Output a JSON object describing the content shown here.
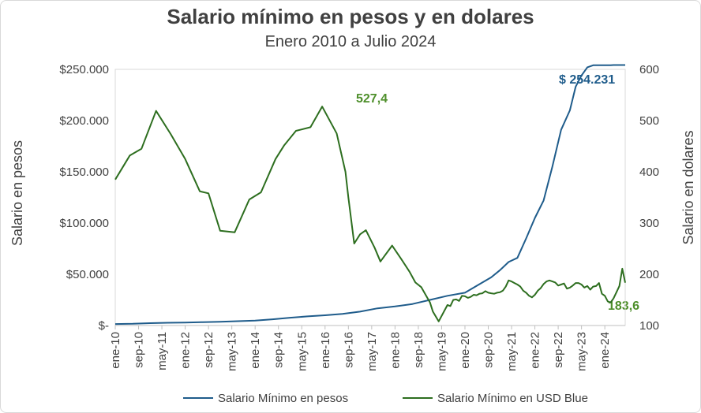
{
  "chart_data": {
    "type": "line",
    "title": "Salario mínimo en pesos y en dolares",
    "subtitle": "Enero 2010 a Julio 2024",
    "ylabel": "Salario en pesos",
    "y2label": "Salario en dolares",
    "ylim": [
      0,
      250000
    ],
    "y2lim": [
      100,
      600
    ],
    "yticks": [
      "$-",
      "$50.000",
      "$100.000",
      "$150.000",
      "$200.000",
      "$250.000"
    ],
    "y2ticks": [
      "100",
      "200",
      "300",
      "400",
      "500",
      "600"
    ],
    "xticks": [
      "ene-10",
      "sep-10",
      "may-11",
      "ene-12",
      "sep-12",
      "may-13",
      "ene-14",
      "sep-14",
      "may-15",
      "ene-16",
      "sep-16",
      "may-17",
      "ene-18",
      "sep-18",
      "may-19",
      "ene-20",
      "sep-20",
      "may-21",
      "ene-22",
      "sep-22",
      "may-23",
      "ene-24"
    ],
    "series": [
      {
        "name": "Salario Mínimo en pesos",
        "color": "#1f5c8b",
        "axis": "left",
        "x": [
          0,
          6,
          12,
          18,
          24,
          30,
          36,
          42,
          48,
          54,
          60,
          66,
          72,
          78,
          84,
          90,
          96,
          102,
          108,
          114,
          120,
          126,
          129,
          132,
          135,
          138,
          141,
          144,
          147,
          150,
          153,
          156,
          158,
          160,
          162,
          164,
          166,
          168,
          170,
          171,
          172,
          173,
          174,
          175
        ],
        "values": [
          1500,
          1700,
          2300,
          2700,
          2900,
          3300,
          3600,
          4200,
          4800,
          6100,
          7600,
          8900,
          10000,
          11300,
          13500,
          16800,
          18600,
          21000,
          25000,
          29000,
          32000,
          42000,
          47000,
          54000,
          62000,
          66000,
          85000,
          105000,
          122000,
          155000,
          191000,
          210000,
          233000,
          244000,
          252000,
          254000,
          254000,
          254000,
          254000,
          254231,
          254231,
          254231,
          254231,
          254231
        ]
      },
      {
        "name": "Salario Mínimo en USD Blue",
        "color": "#2d6e1f",
        "axis": "right",
        "x": [
          0,
          5,
          9,
          14,
          19,
          24,
          29,
          32,
          36,
          41,
          46,
          50,
          55,
          58,
          62,
          67,
          71,
          76,
          79,
          80,
          82,
          84,
          86,
          89,
          91,
          95,
          98,
          101,
          103,
          105,
          108,
          109,
          111,
          114,
          115,
          116,
          117,
          118,
          119,
          120,
          121,
          122,
          123,
          124,
          125,
          126,
          127,
          128,
          129,
          130,
          131,
          132,
          133,
          134,
          135,
          136,
          137,
          138,
          139,
          140,
          141,
          142,
          143,
          144,
          145,
          146,
          147,
          148,
          149,
          150,
          151,
          152,
          153,
          154,
          155,
          156,
          157,
          158,
          159,
          160,
          161,
          162,
          163,
          164,
          165,
          166,
          167,
          168,
          169,
          170,
          171,
          172,
          173,
          174,
          175
        ],
        "values": [
          385,
          432,
          445,
          519,
          474,
          425,
          362,
          358,
          285,
          282,
          346,
          360,
          425,
          452,
          480,
          487,
          527.4,
          475,
          400,
          350,
          260,
          278,
          286,
          252,
          225,
          256,
          231,
          205,
          184,
          175,
          145,
          127,
          108,
          140,
          138,
          150,
          151,
          148,
          158,
          157,
          154,
          156,
          160,
          159,
          162,
          163,
          167,
          164,
          163,
          162,
          164,
          165,
          168,
          176,
          188,
          186,
          183,
          180,
          176,
          168,
          164,
          158,
          155,
          160,
          168,
          173,
          181,
          186,
          188,
          186,
          184,
          178,
          180,
          182,
          172,
          174,
          178,
          183,
          183,
          180,
          174,
          177,
          170,
          176,
          177,
          183,
          162,
          158,
          147,
          145,
          153,
          165,
          177,
          211,
          183.6
        ]
      }
    ],
    "annotations": [
      {
        "text": "$ 254.231",
        "color": "#1f5c8b"
      },
      {
        "text": "527,4",
        "color": "#4e8f2b"
      },
      {
        "text": "183,6",
        "color": "#4e8f2b"
      }
    ],
    "legend": {
      "position": "bottom"
    },
    "grid": false
  }
}
